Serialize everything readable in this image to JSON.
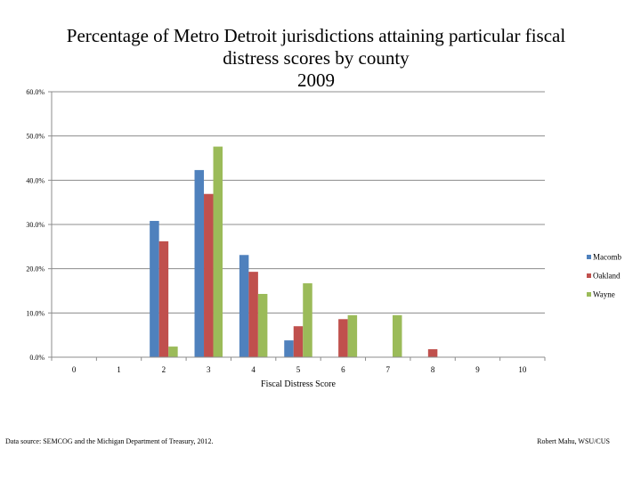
{
  "title_lines": [
    "Percentage of Metro Detroit jurisdictions attaining particular fiscal",
    "distress scores by county",
    "2009"
  ],
  "chart_data": {
    "type": "bar",
    "title": "Percentage of Metro Detroit jurisdictions attaining particular fiscal distress scores by county 2009",
    "xlabel": "Fiscal Distress Score",
    "ylabel": "",
    "categories": [
      "0",
      "1",
      "2",
      "3",
      "4",
      "5",
      "6",
      "7",
      "8",
      "9",
      "10"
    ],
    "ylim": [
      0,
      60
    ],
    "yticks": [
      "0.0%",
      "10.0%",
      "20.0%",
      "30.0%",
      "40.0%",
      "50.0%",
      "60.0%"
    ],
    "ytick_values": [
      0,
      10,
      20,
      30,
      40,
      50,
      60
    ],
    "grid": true,
    "legend_position": "right",
    "series": [
      {
        "name": "Macomb",
        "color": "#4f81bd",
        "values": [
          0,
          0,
          30.8,
          42.3,
          23.1,
          3.8,
          0,
          0,
          0,
          0,
          0
        ]
      },
      {
        "name": "Oakland",
        "color": "#c0504d",
        "values": [
          0,
          0,
          26.2,
          36.9,
          19.3,
          7.0,
          8.6,
          0,
          1.8,
          0,
          0
        ]
      },
      {
        "name": "Wayne",
        "color": "#9bbb59",
        "values": [
          0,
          0,
          2.4,
          47.6,
          14.3,
          16.7,
          9.5,
          9.5,
          0,
          0,
          0
        ]
      }
    ]
  },
  "footer": {
    "source": "Data source: SEMCOG and the Michigan Department of Treasury, 2012.",
    "author": "Robert Mahu, WSU/CUS"
  }
}
